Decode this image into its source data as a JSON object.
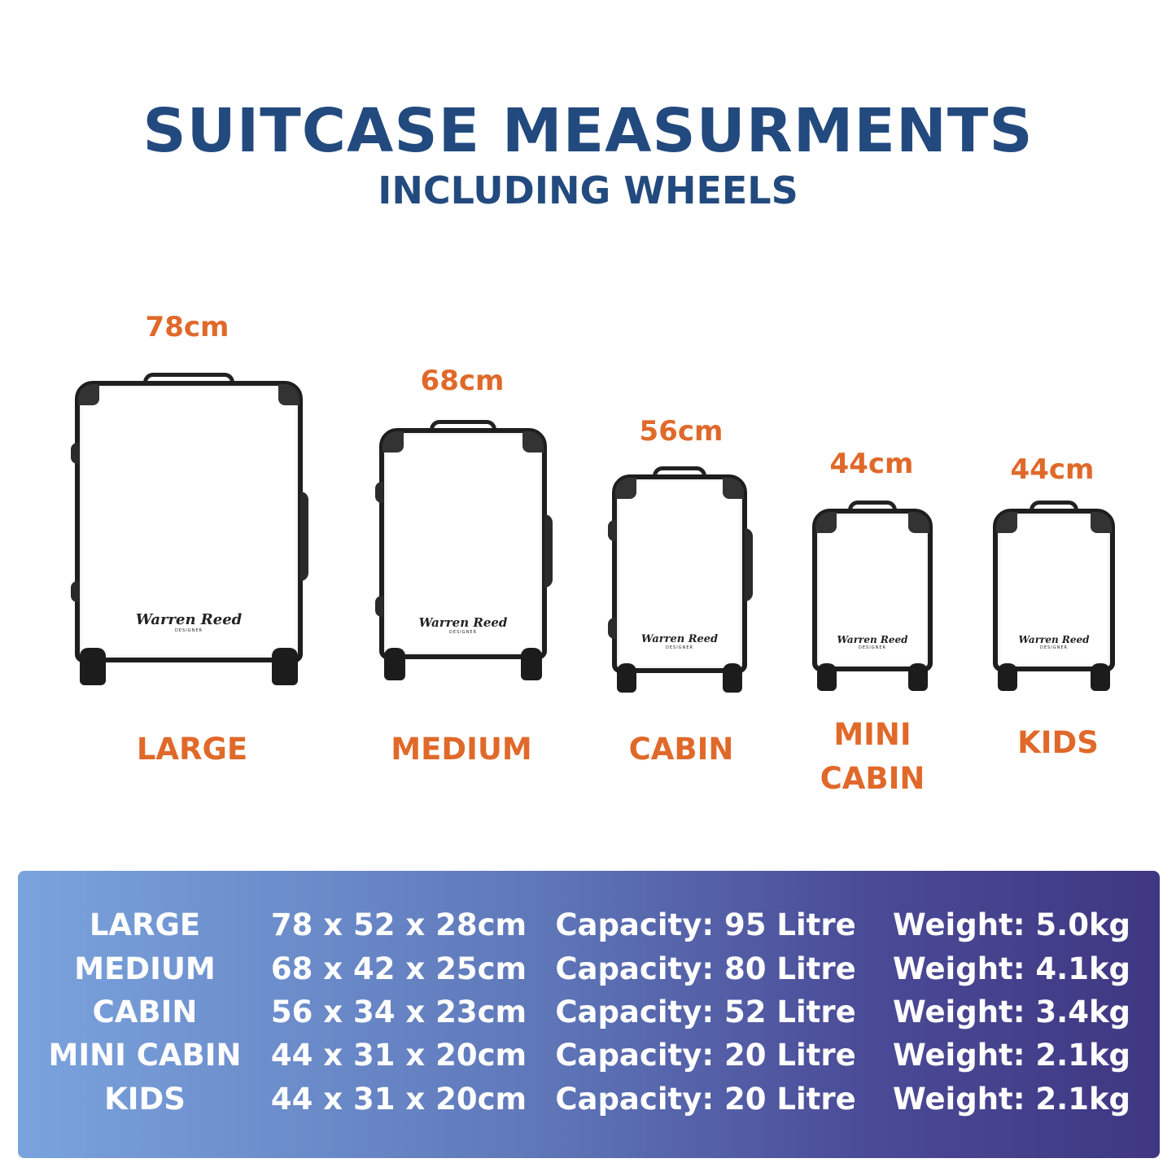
{
  "header": {
    "title": "SUITCASE MEASURMENTS",
    "subtitle": "INCLUDING WHEELS"
  },
  "colors": {
    "title": "#234a7e",
    "accent": "#e0692a",
    "gradient_start": "#7aa3dd",
    "gradient_end": "#3f3782"
  },
  "brand_logo": {
    "script": "Warren Reed",
    "tag": "DESIGNER"
  },
  "suitcases": [
    {
      "height": "78cm",
      "name": "LARGE"
    },
    {
      "height": "68cm",
      "name": "MEDIUM"
    },
    {
      "height": "56cm",
      "name": "CABIN"
    },
    {
      "height": "44cm",
      "name": "MINI CABIN",
      "name_line1": "MINI",
      "name_line2": "CABIN"
    },
    {
      "height": "44cm",
      "name": "KIDS"
    }
  ],
  "table": {
    "rows": [
      {
        "size": "LARGE",
        "dimensions": "78 x 52 x 28cm",
        "capacity": "Capacity: 95 Litre",
        "weight": "Weight: 5.0kg"
      },
      {
        "size": "MEDIUM",
        "dimensions": "68 x 42 x 25cm",
        "capacity": "Capacity: 80 Litre",
        "weight": "Weight: 4.1kg"
      },
      {
        "size": "CABIN",
        "dimensions": "56 x 34 x 23cm",
        "capacity": "Capacity: 52 Litre",
        "weight": "Weight: 3.4kg"
      },
      {
        "size": "MINI CABIN",
        "dimensions": "44 x 31 x 20cm",
        "capacity": "Capacity: 20 Litre",
        "weight": "Weight: 2.1kg"
      },
      {
        "size": "KIDS",
        "dimensions": "44 x 31 x 20cm",
        "capacity": "Capacity: 20 Litre",
        "weight": "Weight: 2.1kg"
      }
    ]
  }
}
